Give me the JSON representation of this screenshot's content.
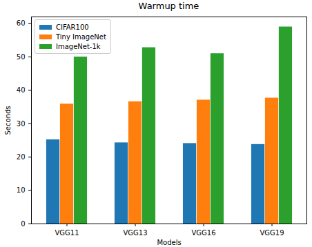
{
  "chart_data": {
    "type": "bar",
    "title": "Warmup time",
    "x_label": "Models",
    "y_label": "Seconds",
    "categories": [
      "VGG11",
      "VGG13",
      "VGG16",
      "VGG19"
    ],
    "series": [
      {
        "name": "CIFAR100",
        "color": "#1f77b4",
        "values": [
          25.2,
          24.3,
          24.1,
          23.8
        ]
      },
      {
        "name": "Tiny ImageNet",
        "color": "#ff7f0e",
        "values": [
          35.9,
          36.6,
          37.1,
          37.7
        ]
      },
      {
        "name": "ImageNet-1k",
        "color": "#2ca02c",
        "values": [
          50.0,
          52.8,
          51.0,
          59.0
        ]
      }
    ],
    "ylim": [
      0,
      62
    ],
    "yticks": [
      0,
      10,
      20,
      30,
      40,
      50,
      60
    ],
    "grid": false,
    "legend": "upper left"
  }
}
